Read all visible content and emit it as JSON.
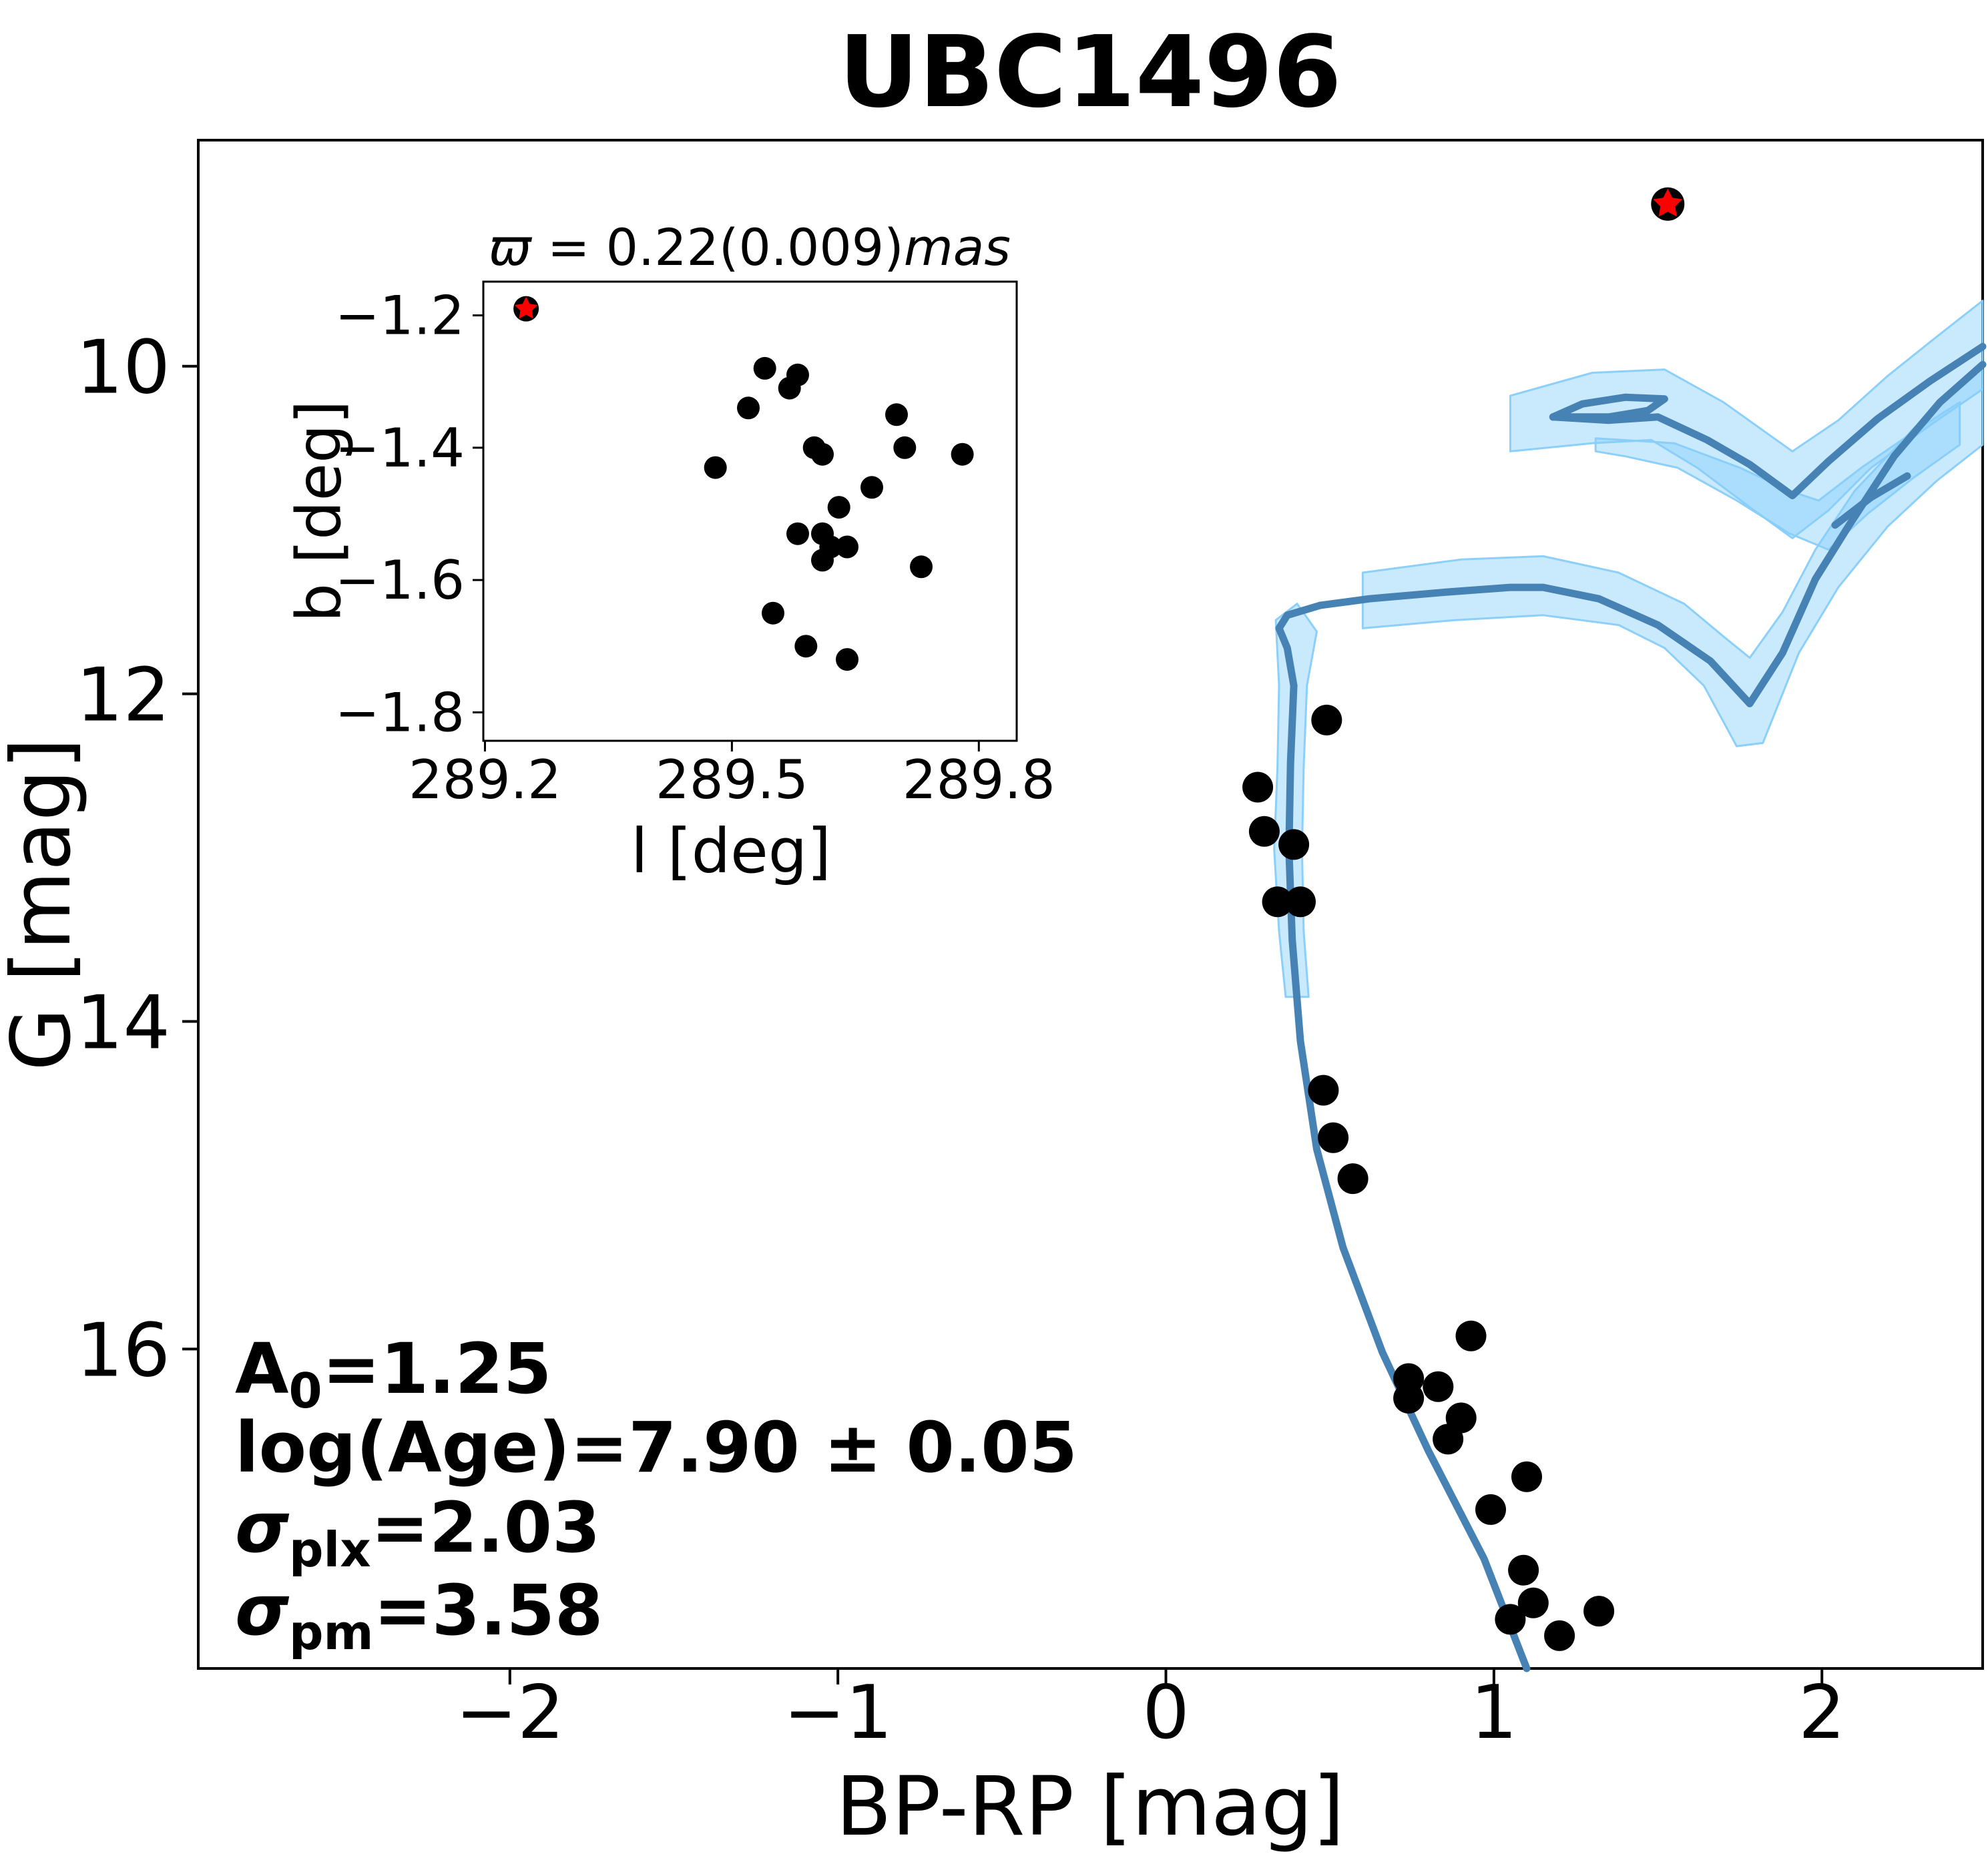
{
  "figure": {
    "title": "UBC1496",
    "background": "#ffffff"
  },
  "annotation": {
    "line1": {
      "base": "A",
      "sub": "0",
      "rest": "=1.25"
    },
    "line2": "log(Age)=7.90 ± 0.05",
    "line3": {
      "base": "σ",
      "sub": "plx",
      "rest": "=2.03"
    },
    "line4": {
      "base": "σ",
      "sub": "pm",
      "rest": "=3.58"
    }
  },
  "colors": {
    "isochrone_line": "#4682b4",
    "isochrone_band_fill": "rgba(135,206,250,0.45)",
    "isochrone_band_edge": "rgba(135,206,250,0.95)",
    "member_marker": "#000000",
    "field_star_fill": "#ff0000",
    "field_star_edge": "#000000",
    "axis_color": "#000000"
  },
  "chart_data": [
    {
      "id": "cmd",
      "type": "scatter",
      "title": "UBC1496",
      "xlabel": "BP-RP [mag]",
      "ylabel": "G [mag]",
      "xlim": [
        -2.95,
        2.49
      ],
      "ylim_top_to_bottom": [
        8.62,
        17.95
      ],
      "grid": false,
      "xticks": [
        {
          "v": -2,
          "label": "−2"
        },
        {
          "v": -1,
          "label": "−1"
        },
        {
          "v": 0,
          "label": "0"
        },
        {
          "v": 1,
          "label": "1"
        },
        {
          "v": 2,
          "label": "2"
        }
      ],
      "yticks": [
        {
          "v": 10,
          "label": "10"
        },
        {
          "v": 12,
          "label": "12"
        },
        {
          "v": 14,
          "label": "14"
        },
        {
          "v": 16,
          "label": "16"
        }
      ],
      "members": [
        [
          0.49,
          12.16
        ],
        [
          0.28,
          12.57
        ],
        [
          0.3,
          12.84
        ],
        [
          0.39,
          12.92
        ],
        [
          0.34,
          13.27
        ],
        [
          0.41,
          13.27
        ],
        [
          0.48,
          14.42
        ],
        [
          0.51,
          14.71
        ],
        [
          0.57,
          14.96
        ],
        [
          0.93,
          15.92
        ],
        [
          0.74,
          16.18
        ],
        [
          0.83,
          16.23
        ],
        [
          0.74,
          16.3
        ],
        [
          0.9,
          16.42
        ],
        [
          0.86,
          16.55
        ],
        [
          1.1,
          16.78
        ],
        [
          0.99,
          16.98
        ],
        [
          1.09,
          17.35
        ],
        [
          1.12,
          17.55
        ],
        [
          1.05,
          17.65
        ],
        [
          1.2,
          17.75
        ],
        [
          1.32,
          17.6
        ]
      ],
      "field_star": [
        1.53,
        9.01
      ],
      "isochrone_lines": [
        {
          "name": "main-sequence",
          "pts": [
            [
              1.1,
              17.95
            ],
            [
              0.97,
              17.28
            ],
            [
              0.8,
              16.62
            ],
            [
              0.66,
              16.02
            ],
            [
              0.54,
              15.38
            ],
            [
              0.46,
              14.78
            ],
            [
              0.41,
              14.12
            ],
            [
              0.385,
              13.5
            ],
            [
              0.375,
              12.95
            ],
            [
              0.38,
              12.42
            ],
            [
              0.39,
              11.95
            ],
            [
              0.37,
              11.72
            ],
            [
              0.345,
              11.6
            ],
            [
              0.37,
              11.52
            ],
            [
              0.47,
              11.46
            ]
          ]
        },
        {
          "name": "subgiant-nominal",
          "pts": [
            [
              0.47,
              11.46
            ],
            [
              0.62,
              11.42
            ],
            [
              0.85,
              11.38
            ],
            [
              1.05,
              11.35
            ],
            [
              1.15,
              11.35
            ],
            [
              1.32,
              11.42
            ],
            [
              1.5,
              11.58
            ],
            [
              1.66,
              11.8
            ],
            [
              1.78,
              12.06
            ],
            [
              1.88,
              11.75
            ],
            [
              1.98,
              11.3
            ],
            [
              2.08,
              10.98
            ],
            [
              2.22,
              10.55
            ],
            [
              2.36,
              10.22
            ],
            [
              2.49,
              9.99
            ]
          ]
        },
        {
          "name": "upper-isochrone",
          "pts": [
            [
              1.18,
              10.31
            ],
            [
              1.35,
              10.33
            ],
            [
              1.5,
              10.31
            ],
            [
              1.65,
              10.45
            ],
            [
              1.78,
              10.6
            ],
            [
              1.91,
              10.79
            ],
            [
              2.02,
              10.58
            ],
            [
              2.17,
              10.32
            ],
            [
              2.33,
              10.09
            ],
            [
              2.49,
              9.88
            ]
          ]
        },
        {
          "name": "upper-isochrone-hook",
          "pts": [
            [
              1.18,
              10.31
            ],
            [
              1.27,
              10.23
            ],
            [
              1.4,
              10.19
            ],
            [
              1.52,
              10.2
            ],
            [
              1.47,
              10.27
            ],
            [
              1.35,
              10.31
            ],
            [
              1.18,
              10.31
            ]
          ]
        },
        {
          "name": "middle-stub",
          "pts": [
            [
              2.04,
              10.97
            ],
            [
              2.15,
              10.8
            ],
            [
              2.26,
              10.67
            ]
          ]
        }
      ],
      "isochrone_bands": [
        {
          "name": "band-upper",
          "pts": [
            [
              1.05,
              10.18
            ],
            [
              1.3,
              10.04
            ],
            [
              1.52,
              10.02
            ],
            [
              1.7,
              10.22
            ],
            [
              1.91,
              10.52
            ],
            [
              2.05,
              10.33
            ],
            [
              2.2,
              10.06
            ],
            [
              2.35,
              9.82
            ],
            [
              2.49,
              9.6
            ],
            [
              2.49,
              10.14
            ],
            [
              2.33,
              10.36
            ],
            [
              2.15,
              10.62
            ],
            [
              2.02,
              10.88
            ],
            [
              1.91,
              11.05
            ],
            [
              1.78,
              10.86
            ],
            [
              1.62,
              10.62
            ],
            [
              1.48,
              10.45
            ],
            [
              1.3,
              10.47
            ],
            [
              1.05,
              10.52
            ]
          ]
        },
        {
          "name": "band-middle",
          "pts": [
            [
              1.31,
              10.44
            ],
            [
              1.55,
              10.47
            ],
            [
              1.75,
              10.62
            ],
            [
              1.9,
              10.76
            ],
            [
              1.99,
              10.82
            ],
            [
              2.12,
              10.62
            ],
            [
              2.28,
              10.4
            ],
            [
              2.42,
              10.22
            ],
            [
              2.42,
              10.48
            ],
            [
              2.28,
              10.68
            ],
            [
              2.14,
              10.9
            ],
            [
              2.02,
              11.12
            ],
            [
              1.9,
              11.02
            ],
            [
              1.74,
              10.82
            ],
            [
              1.56,
              10.62
            ],
            [
              1.4,
              10.55
            ],
            [
              1.31,
              10.52
            ]
          ]
        },
        {
          "name": "band-nominal",
          "pts": [
            [
              0.6,
              11.26
            ],
            [
              0.9,
              11.18
            ],
            [
              1.15,
              11.16
            ],
            [
              1.38,
              11.26
            ],
            [
              1.58,
              11.45
            ],
            [
              1.7,
              11.65
            ],
            [
              1.78,
              11.78
            ],
            [
              1.88,
              11.5
            ],
            [
              1.98,
              11.12
            ],
            [
              2.1,
              10.76
            ],
            [
              2.28,
              10.38
            ],
            [
              2.42,
              10.12
            ],
            [
              2.49,
              10.0
            ],
            [
              2.49,
              10.48
            ],
            [
              2.35,
              10.7
            ],
            [
              2.2,
              10.98
            ],
            [
              2.05,
              11.35
            ],
            [
              1.93,
              11.75
            ],
            [
              1.82,
              12.3
            ],
            [
              1.74,
              12.32
            ],
            [
              1.64,
              11.95
            ],
            [
              1.52,
              11.72
            ],
            [
              1.38,
              11.58
            ],
            [
              1.15,
              11.52
            ],
            [
              0.88,
              11.55
            ],
            [
              0.6,
              11.6
            ]
          ]
        },
        {
          "name": "band-main-sequence",
          "pts": [
            [
              0.335,
              11.55
            ],
            [
              0.345,
              11.95
            ],
            [
              0.34,
              12.45
            ],
            [
              0.33,
              12.95
            ],
            [
              0.345,
              13.45
            ],
            [
              0.365,
              13.85
            ],
            [
              0.435,
              13.85
            ],
            [
              0.42,
              13.45
            ],
            [
              0.415,
              12.95
            ],
            [
              0.42,
              12.45
            ],
            [
              0.43,
              11.95
            ],
            [
              0.46,
              11.62
            ],
            [
              0.4,
              11.45
            ]
          ]
        }
      ]
    },
    {
      "id": "inset",
      "type": "scatter",
      "title_parts": {
        "pre": "ϖ",
        "eq": " = ",
        "val": "0.22(0.009)",
        "unit": "mas"
      },
      "xlabel": "l [deg]",
      "ylabel": "b [deg]",
      "xlim": [
        289.198,
        289.846
      ],
      "ylim_top_to_bottom": [
        -1.149,
        -1.843
      ],
      "grid": false,
      "xticks": [
        {
          "v": 289.2,
          "label": "289.2"
        },
        {
          "v": 289.5,
          "label": "289.5"
        },
        {
          "v": 289.8,
          "label": "289.8"
        }
      ],
      "yticks": [
        {
          "v": -1.2,
          "label": "−1.2"
        },
        {
          "v": -1.4,
          "label": "−1.4"
        },
        {
          "v": -1.6,
          "label": "−1.6"
        },
        {
          "v": -1.8,
          "label": "−1.8"
        }
      ],
      "members": [
        [
          289.54,
          -1.28
        ],
        [
          289.58,
          -1.29
        ],
        [
          289.57,
          -1.31
        ],
        [
          289.52,
          -1.34
        ],
        [
          289.7,
          -1.35
        ],
        [
          289.71,
          -1.4
        ],
        [
          289.6,
          -1.4
        ],
        [
          289.61,
          -1.41
        ],
        [
          289.78,
          -1.41
        ],
        [
          289.48,
          -1.43
        ],
        [
          289.67,
          -1.46
        ],
        [
          289.63,
          -1.49
        ],
        [
          289.58,
          -1.53
        ],
        [
          289.61,
          -1.53
        ],
        [
          289.62,
          -1.55
        ],
        [
          289.64,
          -1.55
        ],
        [
          289.61,
          -1.57
        ],
        [
          289.73,
          -1.58
        ],
        [
          289.55,
          -1.65
        ],
        [
          289.59,
          -1.7
        ],
        [
          289.64,
          -1.72
        ]
      ],
      "field_star": [
        289.25,
        -1.19
      ]
    }
  ]
}
